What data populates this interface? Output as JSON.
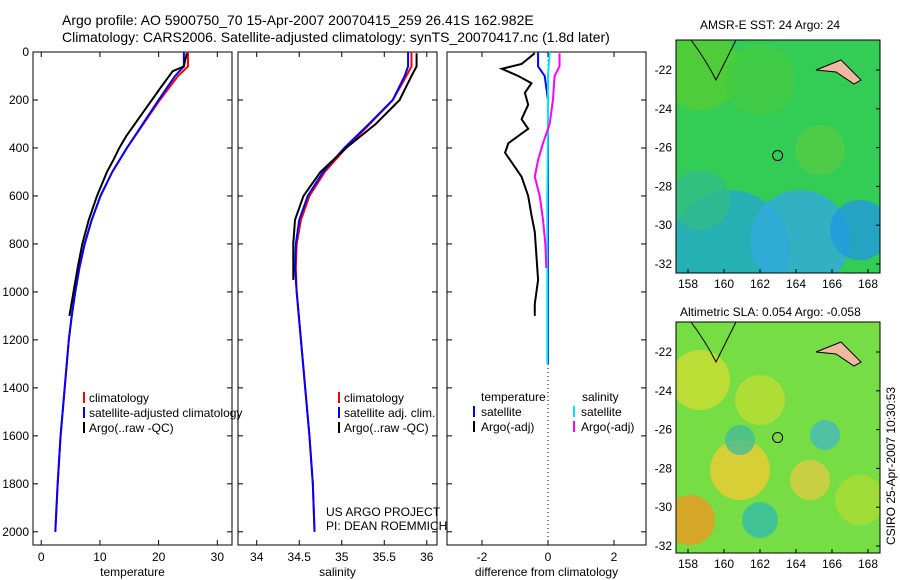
{
  "title": {
    "line1": "Argo profile: AO 5900750_70 15-Apr-2007 20070415_259 26.41S 162.982E",
    "line2": "Climatology: CARS2006. Satellite-adjusted climatology: synTS_20070417.nc (1.8d later)"
  },
  "colors": {
    "climatology": "#ff0000",
    "satellite": "#0000ff",
    "argo": "#000000",
    "sal_satellite": "#00e5ee",
    "sal_argo": "#ff00ff"
  },
  "chart_data": [
    {
      "type": "line",
      "xlabel": "temperature",
      "ylabel": "",
      "xlim": [
        -1.4,
        32.5
      ],
      "ylim": [
        2055,
        0
      ],
      "xticks": [
        0,
        10,
        20,
        30
      ],
      "yticks": [
        0,
        200,
        400,
        600,
        800,
        1000,
        1200,
        1400,
        1600,
        1800,
        2000
      ],
      "legend": [
        "climatology",
        "satellite-adjusted climatology",
        "Argo(..raw -QC)"
      ],
      "series": [
        {
          "name": "climatology",
          "color": "#ff0000",
          "depth": [
            0,
            60,
            100,
            200,
            300,
            400,
            500,
            600,
            700,
            800,
            900,
            1000,
            1100,
            1200,
            1400,
            1600,
            1800,
            2000
          ],
          "values": [
            25,
            25,
            23.3,
            20.2,
            17.4,
            14.6,
            12.1,
            10.1,
            8.6,
            7.4,
            6.5,
            5.8,
            5.2,
            4.7,
            4.0,
            3.3,
            2.8,
            2.4
          ]
        },
        {
          "name": "satellite-adjusted climatology",
          "color": "#0000ff",
          "depth": [
            0,
            60,
            100,
            200,
            300,
            400,
            500,
            600,
            700,
            800,
            900,
            1000,
            1100,
            1200,
            1400,
            1600,
            1800,
            2000
          ],
          "values": [
            24.3,
            24.3,
            22.8,
            20.0,
            17.3,
            14.6,
            12.1,
            10.1,
            8.6,
            7.4,
            6.5,
            5.8,
            5.2,
            4.7,
            4.0,
            3.3,
            2.8,
            2.4
          ]
        },
        {
          "name": "Argo(..raw -QC)",
          "color": "#000000",
          "depth": [
            5,
            60,
            80,
            150,
            250,
            350,
            400,
            450,
            500,
            600,
            700,
            800,
            900,
            1000,
            1100
          ],
          "values": [
            24.8,
            24.3,
            22.4,
            20.3,
            17.4,
            14.5,
            13.3,
            12.3,
            11.2,
            9.5,
            8.1,
            7.0,
            6.2,
            5.5,
            4.8
          ]
        }
      ]
    },
    {
      "type": "line",
      "xlabel": "salinity",
      "xlim": [
        33.78,
        36.12
      ],
      "ylim": [
        2055,
        0
      ],
      "xticks": [
        34,
        34.5,
        35,
        35.5,
        36
      ],
      "yticks": [],
      "legend": [
        "climatology",
        "satellite adj. clim.",
        "Argo(..raw -QC)"
      ],
      "annotation": [
        "US ARGO PROJECT",
        "PI: DEAN ROEMMICH"
      ],
      "series": [
        {
          "name": "climatology",
          "color": "#ff0000",
          "depth": [
            0,
            60,
            100,
            200,
            300,
            400,
            500,
            600,
            700,
            800,
            900,
            1000,
            1200,
            1400,
            1600,
            1800,
            2000
          ],
          "values": [
            35.82,
            35.82,
            35.76,
            35.6,
            35.33,
            35.05,
            34.8,
            34.62,
            34.52,
            34.47,
            34.46,
            34.47,
            34.52,
            34.57,
            34.62,
            34.66,
            34.68
          ]
        },
        {
          "name": "satellite adj. clim.",
          "color": "#0000ff",
          "depth": [
            0,
            60,
            100,
            200,
            300,
            400,
            500,
            600,
            700,
            800,
            900,
            1000,
            1200,
            1400,
            1600,
            1800,
            2000
          ],
          "values": [
            35.78,
            35.78,
            35.74,
            35.6,
            35.32,
            35.03,
            34.78,
            34.6,
            34.5,
            34.46,
            34.45,
            34.47,
            34.52,
            34.57,
            34.62,
            34.66,
            34.68
          ]
        },
        {
          "name": "Argo(..raw -QC)",
          "color": "#000000",
          "depth": [
            5,
            60,
            100,
            200,
            300,
            400,
            500,
            600,
            700,
            800,
            900,
            950
          ],
          "values": [
            35.88,
            35.88,
            35.82,
            35.68,
            35.4,
            35.05,
            34.75,
            34.55,
            34.45,
            34.43,
            34.43,
            34.43
          ]
        }
      ]
    },
    {
      "type": "line",
      "xlabel": "difference from climatology",
      "xlim": [
        -3.06,
        2.97
      ],
      "ylim": [
        2055,
        0
      ],
      "xticks": [
        -2,
        0,
        2
      ],
      "yticks": [],
      "legend_temperature": {
        "title": "temperature",
        "items": [
          "satellite",
          "Argo(-adj)"
        ]
      },
      "legend_salinity": {
        "title": "salinity",
        "items": [
          "satellite",
          "Argo(-adj)"
        ]
      },
      "series": [
        {
          "name": "temperature satellite",
          "color": "#0000ff",
          "depth": [
            0,
            60,
            100,
            200,
            400,
            800,
            1300
          ],
          "values": [
            -0.3,
            -0.3,
            -0.1,
            0,
            0,
            0,
            0
          ]
        },
        {
          "name": "temperature Argo(-adj)",
          "color": "#000000",
          "depth": [
            5,
            50,
            70,
            100,
            130,
            170,
            220,
            280,
            320,
            380,
            420,
            460,
            520,
            600,
            680,
            750,
            850,
            950,
            1050,
            1100
          ],
          "values": [
            -0.4,
            -0.8,
            -1.4,
            -0.9,
            -0.5,
            -0.7,
            -0.6,
            -0.8,
            -0.6,
            -1.2,
            -1.3,
            -1.1,
            -0.8,
            -0.6,
            -0.5,
            -0.4,
            -0.35,
            -0.3,
            -0.4,
            -0.4
          ]
        },
        {
          "name": "salinity satellite",
          "color": "#00e5ee",
          "depth": [
            0,
            100,
            300,
            600,
            1000,
            1300
          ],
          "values": [
            0.05,
            0,
            0,
            -0.02,
            -0.02,
            -0.02
          ]
        },
        {
          "name": "salinity Argo(-adj)",
          "color": "#ff00ff",
          "depth": [
            5,
            60,
            100,
            200,
            300,
            380,
            450,
            520,
            600,
            700,
            800,
            900
          ],
          "values": [
            0.35,
            0.35,
            0.2,
            0.15,
            0.05,
            -0.15,
            -0.3,
            -0.4,
            -0.25,
            -0.15,
            -0.08,
            -0.05
          ]
        }
      ]
    }
  ],
  "maps": [
    {
      "title": "AMSR-E SST: 24 Argo: 24",
      "xticks": [
        158,
        160,
        162,
        164,
        166,
        168
      ],
      "yticks": [
        -22,
        -24,
        -26,
        -28,
        -30,
        -32
      ],
      "argo_lon": 162.98,
      "argo_lat": -26.41
    },
    {
      "title": "Altimetric SLA: 0.054 Argo: -0.058",
      "xticks": [
        158,
        160,
        162,
        164,
        166,
        168
      ],
      "yticks": [
        -22,
        -24,
        -26,
        -28,
        -30,
        -32
      ],
      "argo_lon": 162.98,
      "argo_lat": -26.41
    }
  ],
  "stamp": "CSIRO 25-Apr-2007 10:30:53"
}
